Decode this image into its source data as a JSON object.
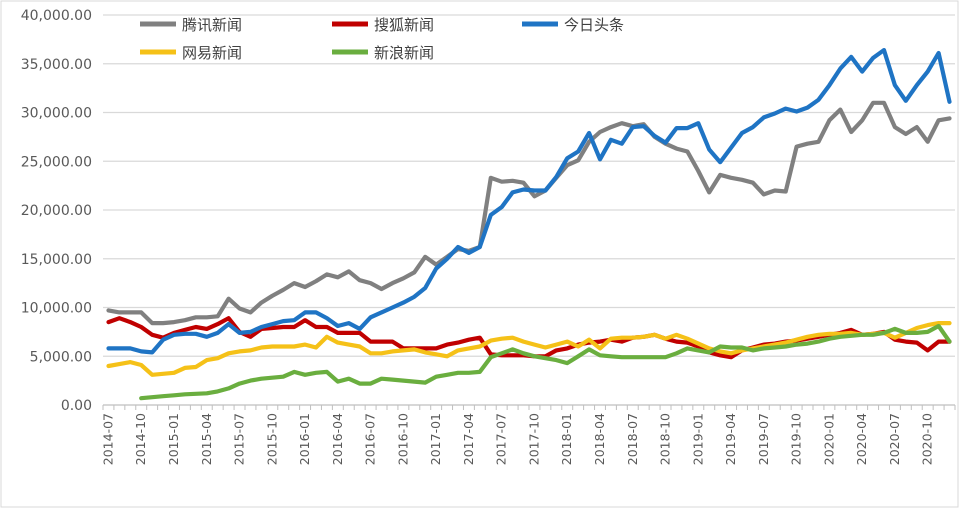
{
  "chart_data": {
    "type": "line",
    "title": "",
    "xlabel": "",
    "ylabel": "",
    "ylim": [
      0,
      40000
    ],
    "yticks": [
      "0.00",
      "5,000.00",
      "10,000.00",
      "15,000.00",
      "20,000.00",
      "25,000.00",
      "30,000.00",
      "35,000.00",
      "40,000.00"
    ],
    "grid": true,
    "legend_position": "top-left",
    "x_start": "2014-07",
    "x_end": "2020-12",
    "x_tick_labels": [
      "2014-07",
      "2014-10",
      "2015-01",
      "2015-04",
      "2015-07",
      "2015-10",
      "2016-01",
      "2016-04",
      "2016-07",
      "2016-10",
      "2017-01",
      "2017-04",
      "2017-07",
      "2017-10",
      "2018-01",
      "2018-04",
      "2018-07",
      "2018-10",
      "2019-01",
      "2019-04",
      "2019-07",
      "2019-10",
      "2020-01",
      "2020-04",
      "2020-07",
      "2020-10"
    ],
    "series": [
      {
        "name": "腾讯新闻",
        "color": "#808080",
        "values": [
          9700,
          9500,
          9500,
          9500,
          8400,
          8400,
          8500,
          8700,
          9000,
          9000,
          9100,
          10900,
          9900,
          9500,
          10500,
          11200,
          11800,
          12500,
          12100,
          12700,
          13400,
          13100,
          13700,
          12800,
          12500,
          11900,
          12500,
          13000,
          13600,
          15200,
          14400,
          15200,
          16000,
          15800,
          16200,
          23300,
          22900,
          23000,
          22800,
          21400,
          22000,
          23300,
          24600,
          25100,
          27000,
          28000,
          28500,
          28900,
          28600,
          28800,
          27500,
          26800,
          26300,
          26000,
          24000,
          21800,
          23600,
          23300,
          23100,
          22800,
          21600,
          22000,
          21900,
          26500,
          26800,
          27000,
          29200,
          30300,
          28000,
          29200,
          31000,
          31000,
          28500,
          27800,
          28500,
          27000,
          29200,
          29400
        ]
      },
      {
        "name": "搜狐新闻",
        "color": "#C00000",
        "values": [
          8500,
          8900,
          8500,
          8000,
          7200,
          6900,
          7400,
          7700,
          8000,
          7800,
          8300,
          8900,
          7500,
          7000,
          7800,
          7900,
          8000,
          8000,
          8700,
          8000,
          8000,
          7400,
          7400,
          7400,
          6500,
          6500,
          6500,
          5800,
          5800,
          5800,
          5800,
          6200,
          6400,
          6700,
          6900,
          5200,
          5100,
          5100,
          5100,
          5000,
          5000,
          5600,
          5800,
          6200,
          6400,
          6500,
          6700,
          6500,
          6900,
          7000,
          7200,
          6800,
          6500,
          6400,
          6000,
          5400,
          5100,
          4900,
          5600,
          5900,
          6200,
          6300,
          6500,
          6600,
          6800,
          7000,
          7200,
          7400,
          7700,
          7200,
          7300,
          7500,
          6700,
          6500,
          6400,
          5600,
          6500,
          6500
        ]
      },
      {
        "name": "今日头条",
        "color": "#1F74C4",
        "values": [
          5800,
          5800,
          5800,
          5500,
          5400,
          6700,
          7200,
          7300,
          7300,
          7000,
          7400,
          8300,
          7400,
          7500,
          8000,
          8300,
          8600,
          8700,
          9500,
          9500,
          8900,
          8100,
          8400,
          7800,
          9000,
          9500,
          10000,
          10500,
          11100,
          12000,
          14000,
          15000,
          16200,
          15600,
          16200,
          19500,
          20300,
          21800,
          22100,
          22000,
          22000,
          23400,
          25300,
          26000,
          27900,
          25200,
          27200,
          26800,
          28500,
          28600,
          27600,
          26900,
          28400,
          28400,
          28900,
          26200,
          24900,
          26400,
          27900,
          28500,
          29500,
          29900,
          30400,
          30100,
          30500,
          31300,
          32800,
          34500,
          35700,
          34200,
          35600,
          36400,
          32800,
          31200,
          32800,
          34200,
          36100,
          31100
        ]
      },
      {
        "name": "网易新闻",
        "color": "#F5C118",
        "values": [
          4000,
          4200,
          4400,
          4100,
          3100,
          3200,
          3300,
          3800,
          3900,
          4600,
          4800,
          5300,
          5500,
          5600,
          5900,
          6000,
          6000,
          6000,
          6200,
          5900,
          7000,
          6400,
          6200,
          6000,
          5300,
          5300,
          5500,
          5600,
          5700,
          5400,
          5200,
          5000,
          5600,
          5800,
          6000,
          6600,
          6800,
          6900,
          6500,
          6200,
          5900,
          6200,
          6500,
          6000,
          6700,
          5800,
          6800,
          6900,
          6900,
          7000,
          7200,
          6800,
          7200,
          6800,
          6300,
          5800,
          5500,
          5300,
          5600,
          5800,
          6000,
          6200,
          6400,
          6700,
          7000,
          7200,
          7300,
          7300,
          7400,
          7200,
          7300,
          7400,
          6900,
          7400,
          7900,
          8200,
          8400,
          8400
        ]
      },
      {
        "name": "新浪新闻",
        "color": "#6AAE3F",
        "values": [
          null,
          null,
          null,
          700,
          800,
          900,
          1000,
          1100,
          1150,
          1200,
          1400,
          1700,
          2200,
          2500,
          2700,
          2800,
          2900,
          3400,
          3100,
          3300,
          3400,
          2400,
          2700,
          2200,
          2200,
          2700,
          2600,
          2500,
          2400,
          2300,
          2900,
          3100,
          3300,
          3300,
          3400,
          4900,
          5300,
          5700,
          5300,
          5000,
          4800,
          4600,
          4300,
          5000,
          5700,
          5100,
          5000,
          4900,
          4900,
          4900,
          4900,
          4900,
          5300,
          5800,
          5600,
          5400,
          6000,
          5900,
          5900,
          5600,
          5800,
          5900,
          6000,
          6200,
          6300,
          6500,
          6800,
          7000,
          7100,
          7200,
          7200,
          7400,
          7800,
          7400,
          7400,
          7500,
          8100,
          6500
        ]
      }
    ]
  }
}
